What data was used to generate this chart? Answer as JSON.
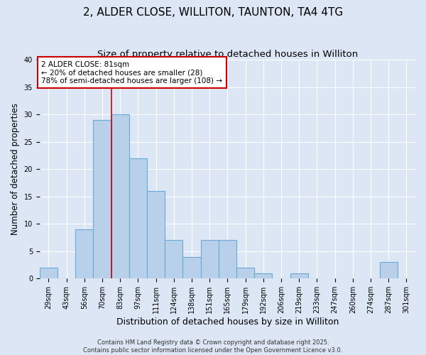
{
  "title": "2, ALDER CLOSE, WILLITON, TAUNTON, TA4 4TG",
  "subtitle": "Size of property relative to detached houses in Williton",
  "xlabel": "Distribution of detached houses by size in Williton",
  "ylabel": "Number of detached properties",
  "bin_labels": [
    "29sqm",
    "43sqm",
    "56sqm",
    "70sqm",
    "83sqm",
    "97sqm",
    "111sqm",
    "124sqm",
    "138sqm",
    "151sqm",
    "165sqm",
    "179sqm",
    "192sqm",
    "206sqm",
    "219sqm",
    "233sqm",
    "247sqm",
    "260sqm",
    "274sqm",
    "287sqm",
    "301sqm"
  ],
  "bar_heights": [
    2,
    0,
    9,
    29,
    30,
    22,
    16,
    7,
    4,
    7,
    7,
    2,
    1,
    0,
    1,
    0,
    0,
    0,
    0,
    3,
    0
  ],
  "bar_color": "#b8d0ea",
  "bar_edge_color": "#6aaad4",
  "bar_edge_width": 0.8,
  "red_line_index": 4,
  "annotation_box_text": "2 ALDER CLOSE: 81sqm\n← 20% of detached houses are smaller (28)\n78% of semi-detached houses are larger (108) →",
  "annotation_box_color": "#ffffff",
  "annotation_box_edge_color": "#cc0000",
  "ylim": [
    0,
    40
  ],
  "yticks": [
    0,
    5,
    10,
    15,
    20,
    25,
    30,
    35,
    40
  ],
  "background_color": "#dce6f5",
  "plot_background_color": "#dce6f5",
  "footer_line1": "Contains HM Land Registry data © Crown copyright and database right 2025.",
  "footer_line2": "Contains public sector information licensed under the Open Government Licence v3.0.",
  "title_fontsize": 11,
  "subtitle_fontsize": 9.5,
  "xlabel_fontsize": 9,
  "ylabel_fontsize": 8.5,
  "tick_fontsize": 7,
  "annotation_fontsize": 7.5,
  "footer_fontsize": 6
}
